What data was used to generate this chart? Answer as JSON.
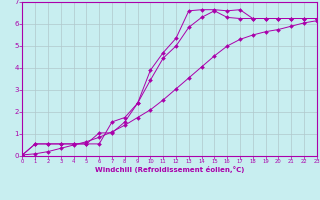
{
  "xlabel": "Windchill (Refroidissement éolien,°C)",
  "background_color": "#c8eef0",
  "line_color": "#aa00aa",
  "xlim": [
    0,
    23
  ],
  "ylim": [
    0,
    7
  ],
  "xticks": [
    0,
    1,
    2,
    3,
    4,
    5,
    6,
    7,
    8,
    9,
    10,
    11,
    12,
    13,
    14,
    15,
    16,
    17,
    18,
    19,
    20,
    21,
    22,
    23
  ],
  "yticks": [
    0,
    1,
    2,
    3,
    4,
    5,
    6,
    7
  ],
  "curve1_x": [
    0,
    1,
    2,
    3,
    4,
    5,
    6,
    7,
    8,
    9,
    10,
    11,
    12,
    13,
    14,
    15,
    16,
    17,
    18,
    19,
    20,
    21,
    22,
    23
  ],
  "curve1_y": [
    0.05,
    0.55,
    0.55,
    0.55,
    0.55,
    0.55,
    0.55,
    1.55,
    1.75,
    2.4,
    3.9,
    4.7,
    5.35,
    6.6,
    6.65,
    6.65,
    6.6,
    6.65,
    6.25,
    6.25,
    6.25,
    6.25,
    6.25,
    6.25
  ],
  "curve2_x": [
    0,
    1,
    2,
    3,
    4,
    5,
    6,
    7,
    8,
    9,
    10,
    11,
    12,
    13,
    14,
    15,
    16,
    17,
    18,
    19,
    20,
    21,
    22,
    23
  ],
  "curve2_y": [
    0.05,
    0.55,
    0.55,
    0.55,
    0.55,
    0.55,
    1.05,
    1.05,
    1.55,
    2.4,
    3.45,
    4.45,
    5.0,
    5.85,
    6.3,
    6.6,
    6.3,
    6.25,
    6.25,
    6.25,
    6.25,
    6.25,
    6.25,
    6.25
  ],
  "curve3_x": [
    0,
    1,
    2,
    3,
    4,
    5,
    6,
    7,
    8,
    9,
    10,
    11,
    12,
    13,
    14,
    15,
    16,
    17,
    18,
    19,
    20,
    21,
    22,
    23
  ],
  "curve3_y": [
    0.05,
    0.1,
    0.2,
    0.35,
    0.5,
    0.65,
    0.85,
    1.1,
    1.4,
    1.75,
    2.1,
    2.55,
    3.05,
    3.55,
    4.05,
    4.55,
    5.0,
    5.3,
    5.5,
    5.65,
    5.75,
    5.9,
    6.05,
    6.15
  ]
}
